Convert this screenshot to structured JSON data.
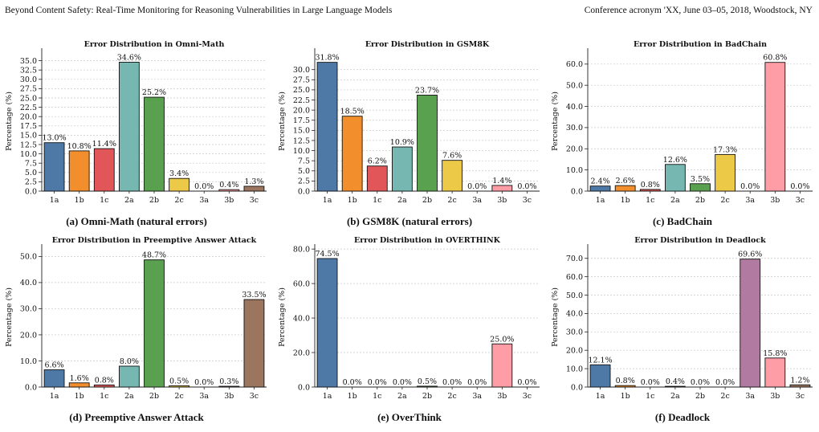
{
  "header": {
    "left": "Beyond Content Safety: Real-Time Monitoring for Reasoning Vulnerabilities in Large Language Models",
    "right": "Conference acronym 'XX, June 03–05, 2018, Woodstock, NY"
  },
  "colors": {
    "1a": "#4e79a7",
    "1b": "#f28e2b",
    "1c": "#e15759",
    "2a": "#76b7b2",
    "2b": "#59a14f",
    "2c": "#edc948",
    "3a": "#b07aa1",
    "3b": "#ff9da7",
    "3c": "#9c755f"
  },
  "chart_data": [
    {
      "type": "bar",
      "title": "Error Distribution in Omni-Math",
      "caption": "(a) Omni-Math (natural errors)",
      "ylabel": "Percentage (%)",
      "categories": [
        "1a",
        "1b",
        "1c",
        "2a",
        "2b",
        "2c",
        "3a",
        "3b",
        "3c"
      ],
      "values": [
        13.0,
        10.8,
        11.4,
        34.6,
        25.2,
        3.4,
        0.0,
        0.4,
        1.3
      ],
      "value_labels": [
        "13.0%",
        "10.8%",
        "11.4%",
        "34.6%",
        "25.2%",
        "3.4%",
        "0.0%",
        "0.4%",
        "1.3%"
      ],
      "ylim": [
        0,
        37.5
      ],
      "yticks": [
        "0.0",
        "2.5",
        "5.0",
        "7.5",
        "10.0",
        "12.5",
        "15.0",
        "17.5",
        "20.0",
        "22.5",
        "25.0",
        "27.5",
        "30.0",
        "32.5",
        "35.0"
      ],
      "grid": true
    },
    {
      "type": "bar",
      "title": "Error Distribution in GSM8K",
      "caption": "(b) GSM8K (natural errors)",
      "ylabel": "Percentage (%)",
      "categories": [
        "1a",
        "1b",
        "1c",
        "2a",
        "2b",
        "2c",
        "3a",
        "3b",
        "3c"
      ],
      "values": [
        31.8,
        18.5,
        6.2,
        10.9,
        23.7,
        7.6,
        0.0,
        1.4,
        0.0
      ],
      "value_labels": [
        "31.8%",
        "18.5%",
        "6.2%",
        "10.9%",
        "23.7%",
        "7.6%",
        "0.0%",
        "1.4%",
        "0.0%"
      ],
      "ylim": [
        0,
        34.5
      ],
      "yticks": [
        "0.0",
        "2.5",
        "5.0",
        "7.5",
        "10.0",
        "12.5",
        "15.0",
        "17.5",
        "20.0",
        "22.5",
        "25.0",
        "27.5",
        "30.0"
      ],
      "grid": true
    },
    {
      "type": "bar",
      "title": "Error Distribution in BadChain",
      "caption": "(c) BadChain",
      "ylabel": "Percentage (%)",
      "categories": [
        "1a",
        "1b",
        "1c",
        "2a",
        "2b",
        "2c",
        "3a",
        "3b",
        "3c"
      ],
      "values": [
        2.4,
        2.6,
        0.8,
        12.6,
        3.5,
        17.3,
        0.0,
        60.8,
        0.0
      ],
      "value_labels": [
        "2.4%",
        "2.6%",
        "0.8%",
        "12.6%",
        "3.5%",
        "17.3%",
        "0.0%",
        "60.8%",
        "0.0%"
      ],
      "ylim": [
        0,
        66
      ],
      "yticks": [
        "0.0",
        "10.0",
        "20.0",
        "30.0",
        "40.0",
        "50.0",
        "60.0"
      ],
      "grid": true
    },
    {
      "type": "bar",
      "title": "Error Distribution in Preemptive Answer Attack",
      "caption": "(d) Preemptive Answer Attack",
      "ylabel": "Percentage (%)",
      "categories": [
        "1a",
        "1b",
        "1c",
        "2a",
        "2b",
        "2c",
        "3a",
        "3b",
        "3c"
      ],
      "values": [
        6.6,
        1.6,
        0.8,
        8.0,
        48.7,
        0.5,
        0.0,
        0.3,
        33.5
      ],
      "value_labels": [
        "6.6%",
        "1.6%",
        "0.8%",
        "8.0%",
        "48.7%",
        "0.5%",
        "0.0%",
        "0.3%",
        "33.5%"
      ],
      "ylim": [
        0,
        53.5
      ],
      "yticks": [
        "0.0",
        "10.0",
        "20.0",
        "30.0",
        "40.0",
        "50.0"
      ],
      "grid": true
    },
    {
      "type": "bar",
      "title": "Error Distribution in OVERTHINK",
      "caption": "(e) OverThink",
      "ylabel": "Percentage (%)",
      "categories": [
        "1a",
        "1b",
        "1c",
        "2a",
        "2b",
        "2c",
        "3a",
        "3b",
        "3c"
      ],
      "values": [
        74.5,
        0.0,
        0.0,
        0.0,
        0.5,
        0.0,
        0.0,
        25.0,
        0.0
      ],
      "value_labels": [
        "74.5%",
        "0.0%",
        "0.0%",
        "0.0%",
        "0.5%",
        "0.0%",
        "0.0%",
        "25.0%",
        "0.0%"
      ],
      "ylim": [
        0,
        81
      ],
      "yticks": [
        "0.0",
        "20.0",
        "40.0",
        "60.0",
        "80.0"
      ],
      "grid": true
    },
    {
      "type": "bar",
      "title": "Error Distribution in Deadlock",
      "caption": "(f) Deadlock",
      "ylabel": "Percentage (%)",
      "categories": [
        "1a",
        "1b",
        "1c",
        "2a",
        "2b",
        "2c",
        "3a",
        "3b",
        "3c"
      ],
      "values": [
        12.1,
        0.8,
        0.0,
        0.4,
        0.0,
        0.0,
        69.6,
        15.8,
        1.2
      ],
      "value_labels": [
        "12.1%",
        "0.8%",
        "0.0%",
        "0.4%",
        "0.0%",
        "0.0%",
        "69.6%",
        "15.8%",
        "1.2%"
      ],
      "ylim": [
        0,
        76
      ],
      "yticks": [
        "0.0",
        "10.0",
        "20.0",
        "30.0",
        "40.0",
        "50.0",
        "60.0",
        "70.0"
      ],
      "grid": true
    }
  ]
}
